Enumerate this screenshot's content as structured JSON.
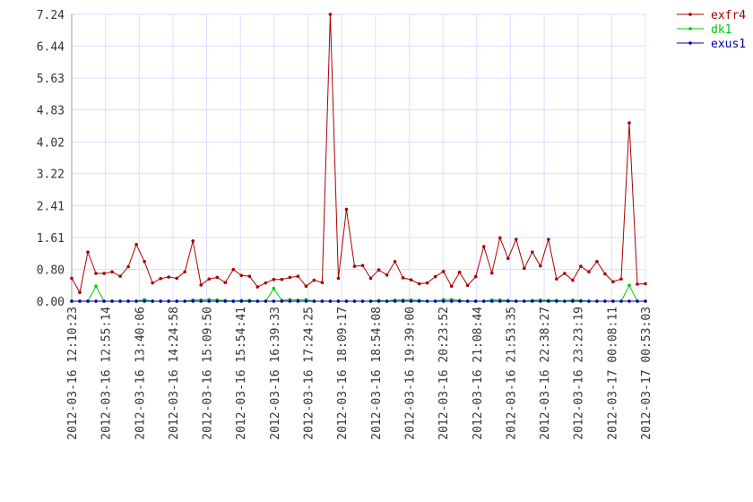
{
  "chart_data": {
    "type": "line",
    "x": [
      0,
      1,
      2,
      3,
      4,
      5,
      6,
      7,
      8,
      9,
      10,
      11,
      12,
      13,
      14,
      15,
      16,
      17,
      18,
      19,
      20,
      21,
      22,
      23,
      24,
      25,
      26,
      27,
      28,
      29,
      30,
      31,
      32,
      33,
      34,
      35,
      36,
      37,
      38,
      39,
      40,
      41,
      42,
      43,
      44,
      45,
      46,
      47,
      48,
      49,
      50,
      51,
      52,
      53,
      54,
      55,
      56,
      57,
      58,
      59,
      60,
      61,
      62,
      63,
      64,
      65,
      66,
      67,
      68,
      69,
      70,
      71
    ],
    "xlim": [
      0,
      71
    ],
    "xticks": [
      {
        "value": 0,
        "label": "2012-03-16 12:10:23"
      },
      {
        "value": 4.18,
        "label": "2012-03-16 12:55:14"
      },
      {
        "value": 8.35,
        "label": "2012-03-16 13:40:06"
      },
      {
        "value": 12.53,
        "label": "2012-03-16 14:24:58"
      },
      {
        "value": 16.71,
        "label": "2012-03-16 15:09:50"
      },
      {
        "value": 20.88,
        "label": "2012-03-16 15:54:41"
      },
      {
        "value": 25.06,
        "label": "2012-03-16 16:39:33"
      },
      {
        "value": 29.24,
        "label": "2012-03-16 17:24:25"
      },
      {
        "value": 33.41,
        "label": "2012-03-16 18:09:17"
      },
      {
        "value": 37.59,
        "label": "2012-03-16 18:54:08"
      },
      {
        "value": 41.76,
        "label": "2012-03-16 19:39:00"
      },
      {
        "value": 45.94,
        "label": "2012-03-16 20:23:52"
      },
      {
        "value": 50.12,
        "label": "2012-03-16 21:08:44"
      },
      {
        "value": 54.29,
        "label": "2012-03-16 21:53:35"
      },
      {
        "value": 58.47,
        "label": "2012-03-16 22:38:27"
      },
      {
        "value": 62.65,
        "label": "2012-03-16 23:23:19"
      },
      {
        "value": 66.82,
        "label": "2012-03-17 00:08:11"
      },
      {
        "value": 71,
        "label": "2012-03-17 00:53:03"
      }
    ],
    "ylim": [
      0,
      7.24
    ],
    "yticks": [
      {
        "value": 0,
        "label": "0.00"
      },
      {
        "value": 0.8,
        "label": "0.80"
      },
      1.61,
      2.41,
      3.22,
      4.02,
      4.83,
      5.63,
      6.44,
      7.24
    ],
    "grid": true,
    "legend": "top-right",
    "series": [
      {
        "name": "exfr4",
        "color": "#aa0000",
        "values": [
          0.58,
          0.22,
          1.24,
          0.7,
          0.7,
          0.74,
          0.63,
          0.87,
          1.43,
          1.0,
          0.46,
          0.57,
          0.61,
          0.58,
          0.74,
          1.52,
          0.41,
          0.56,
          0.6,
          0.47,
          0.8,
          0.65,
          0.63,
          0.36,
          0.46,
          0.55,
          0.55,
          0.6,
          0.63,
          0.38,
          0.53,
          0.47,
          7.24,
          0.58,
          2.32,
          0.88,
          0.9,
          0.58,
          0.79,
          0.66,
          1.0,
          0.59,
          0.54,
          0.44,
          0.46,
          0.62,
          0.75,
          0.38,
          0.73,
          0.4,
          0.62,
          1.38,
          0.71,
          1.6,
          1.08,
          1.56,
          0.83,
          1.24,
          0.89,
          1.56,
          0.56,
          0.7,
          0.53,
          0.88,
          0.74,
          1.0,
          0.69,
          0.49,
          0.56,
          4.5,
          0.43,
          0.44
        ]
      },
      {
        "name": "dk1",
        "color": "#00cc00",
        "values": [
          0,
          0,
          0,
          0.38,
          0,
          0,
          0,
          0,
          0,
          0.04,
          0,
          0,
          0,
          0,
          0,
          0.03,
          0.03,
          0.04,
          0.03,
          0.02,
          0,
          0.02,
          0.02,
          0,
          0,
          0.32,
          0.02,
          0.04,
          0.03,
          0.04,
          0,
          0,
          0,
          0,
          0,
          0,
          0,
          0,
          0.02,
          0,
          0.03,
          0.03,
          0.03,
          0.02,
          0,
          0,
          0.04,
          0.04,
          0.02,
          0,
          0,
          0,
          0.03,
          0.03,
          0.02,
          0,
          0,
          0.02,
          0.03,
          0.02,
          0.02,
          0,
          0.03,
          0.02,
          0,
          0,
          0,
          0,
          0,
          0.4,
          0,
          0
        ]
      },
      {
        "name": "exus1",
        "color": "#0000aa",
        "values": [
          0,
          0,
          0,
          0,
          0,
          0,
          0,
          0,
          0,
          0,
          0,
          0,
          0,
          0,
          0,
          0,
          0,
          0,
          0,
          0,
          0,
          0,
          0,
          0,
          0,
          0,
          0,
          0,
          0,
          0,
          0,
          0,
          0,
          0,
          0,
          0,
          0,
          0,
          0,
          0,
          0,
          0,
          0,
          0,
          0,
          0,
          0,
          0,
          0,
          0,
          0,
          0,
          0,
          0,
          0,
          0,
          0,
          0,
          0,
          0,
          0,
          0,
          0,
          0,
          0,
          0,
          0,
          0,
          0,
          0,
          0,
          0
        ]
      }
    ]
  }
}
